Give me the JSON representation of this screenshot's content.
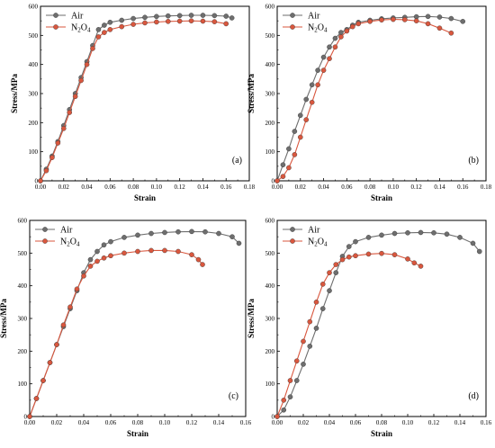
{
  "chart_data": [
    {
      "panel": "(a)",
      "type": "line",
      "xlabel": "Strain",
      "ylabel": "Stress/MPa",
      "xlim": [
        0,
        0.18
      ],
      "ylim": [
        0,
        600
      ],
      "xticks": [
        "0.00",
        "0.02",
        "0.04",
        "0.06",
        "0.08",
        "0.10",
        "0.12",
        "0.14",
        "0.16",
        "0.18"
      ],
      "yticks": [
        "0",
        "100",
        "200",
        "300",
        "400",
        "500",
        "600"
      ],
      "legend": "top-left",
      "series": [
        {
          "name": "Air",
          "color": "#6e6e6e",
          "x": [
            0,
            0.005,
            0.01,
            0.015,
            0.02,
            0.025,
            0.03,
            0.035,
            0.04,
            0.045,
            0.05,
            0.055,
            0.06,
            0.07,
            0.08,
            0.09,
            0.1,
            0.11,
            0.12,
            0.13,
            0.14,
            0.15,
            0.16,
            0.165
          ],
          "y": [
            0,
            40,
            85,
            135,
            190,
            245,
            300,
            355,
            410,
            465,
            520,
            535,
            545,
            552,
            558,
            562,
            565,
            567,
            568,
            569,
            569,
            568,
            566,
            560
          ]
        },
        {
          "name": "N2O4",
          "color": "#d9573e",
          "x": [
            0,
            0.005,
            0.01,
            0.015,
            0.02,
            0.025,
            0.03,
            0.035,
            0.04,
            0.045,
            0.05,
            0.055,
            0.06,
            0.07,
            0.08,
            0.09,
            0.1,
            0.11,
            0.12,
            0.13,
            0.14,
            0.15,
            0.16
          ],
          "y": [
            0,
            35,
            80,
            130,
            180,
            235,
            290,
            345,
            400,
            455,
            495,
            510,
            520,
            530,
            538,
            543,
            546,
            548,
            549,
            550,
            549,
            547,
            540
          ]
        }
      ]
    },
    {
      "panel": "(b)",
      "type": "line",
      "xlabel": "Strain",
      "ylabel": "Stress/MPa",
      "xlim": [
        0,
        0.18
      ],
      "ylim": [
        0,
        600
      ],
      "xticks": [
        "0.00",
        "0.02",
        "0.04",
        "0.06",
        "0.08",
        "0.10",
        "0.12",
        "0.14",
        "0.16",
        "0.18"
      ],
      "yticks": [
        "0",
        "100",
        "200",
        "300",
        "400",
        "500",
        "600"
      ],
      "legend": "top-left",
      "series": [
        {
          "name": "Air",
          "color": "#6e6e6e",
          "x": [
            0,
            0.005,
            0.01,
            0.015,
            0.02,
            0.025,
            0.03,
            0.035,
            0.04,
            0.045,
            0.05,
            0.055,
            0.06,
            0.065,
            0.07,
            0.08,
            0.09,
            0.1,
            0.11,
            0.12,
            0.13,
            0.14,
            0.15,
            0.16
          ],
          "y": [
            0,
            55,
            110,
            170,
            225,
            280,
            330,
            380,
            425,
            460,
            490,
            510,
            520,
            535,
            545,
            552,
            557,
            560,
            562,
            564,
            565,
            563,
            558,
            548
          ]
        },
        {
          "name": "N2O4",
          "color": "#d9573e",
          "x": [
            0,
            0.005,
            0.01,
            0.015,
            0.02,
            0.025,
            0.03,
            0.035,
            0.04,
            0.045,
            0.05,
            0.055,
            0.06,
            0.065,
            0.07,
            0.08,
            0.09,
            0.1,
            0.11,
            0.12,
            0.13,
            0.14,
            0.15
          ],
          "y": [
            0,
            15,
            45,
            90,
            150,
            210,
            270,
            330,
            380,
            420,
            460,
            495,
            515,
            530,
            540,
            548,
            553,
            555,
            554,
            550,
            540,
            525,
            508
          ]
        }
      ]
    },
    {
      "panel": "(c)",
      "type": "line",
      "xlabel": "Strain",
      "ylabel": "Stress/MPa",
      "xlim": [
        0,
        0.16
      ],
      "ylim": [
        0,
        600
      ],
      "xticks": [
        "0.00",
        "0.02",
        "0.04",
        "0.06",
        "0.08",
        "0.10",
        "0.12",
        "0.14",
        "0.16"
      ],
      "yticks": [
        "0",
        "100",
        "200",
        "300",
        "400",
        "500",
        "600"
      ],
      "legend": "top-left",
      "series": [
        {
          "name": "Air",
          "color": "#6e6e6e",
          "x": [
            0,
            0.005,
            0.01,
            0.015,
            0.02,
            0.025,
            0.03,
            0.035,
            0.04,
            0.045,
            0.05,
            0.055,
            0.06,
            0.07,
            0.08,
            0.09,
            0.1,
            0.11,
            0.12,
            0.13,
            0.14,
            0.15,
            0.155
          ],
          "y": [
            0,
            55,
            110,
            165,
            220,
            275,
            330,
            385,
            440,
            480,
            505,
            525,
            535,
            548,
            555,
            560,
            563,
            565,
            566,
            565,
            560,
            550,
            530
          ]
        },
        {
          "name": "N2O4",
          "color": "#d9573e",
          "x": [
            0,
            0.005,
            0.01,
            0.015,
            0.02,
            0.025,
            0.03,
            0.035,
            0.04,
            0.045,
            0.05,
            0.055,
            0.06,
            0.07,
            0.08,
            0.09,
            0.1,
            0.11,
            0.12,
            0.125,
            0.128
          ],
          "y": [
            0,
            55,
            110,
            165,
            220,
            280,
            335,
            390,
            430,
            460,
            475,
            485,
            492,
            500,
            505,
            508,
            508,
            505,
            495,
            480,
            465
          ]
        }
      ]
    },
    {
      "panel": "(d)",
      "type": "line",
      "xlabel": "Strain",
      "ylabel": "Stress/MPa",
      "xlim": [
        0,
        0.16
      ],
      "ylim": [
        0,
        600
      ],
      "xticks": [
        "0.00",
        "0.02",
        "0.04",
        "0.06",
        "0.08",
        "0.10",
        "0.12",
        "0.14",
        "0.16"
      ],
      "yticks": [
        "0",
        "100",
        "200",
        "300",
        "400",
        "500",
        "600"
      ],
      "legend": "top-left",
      "series": [
        {
          "name": "Air",
          "color": "#6e6e6e",
          "x": [
            0,
            0.005,
            0.01,
            0.015,
            0.02,
            0.025,
            0.03,
            0.035,
            0.04,
            0.045,
            0.05,
            0.055,
            0.06,
            0.07,
            0.08,
            0.09,
            0.1,
            0.11,
            0.12,
            0.13,
            0.14,
            0.15,
            0.155
          ],
          "y": [
            0,
            20,
            60,
            110,
            160,
            215,
            270,
            330,
            385,
            440,
            490,
            520,
            535,
            548,
            555,
            560,
            562,
            563,
            562,
            558,
            548,
            530,
            505
          ]
        },
        {
          "name": "N2O4",
          "color": "#d9573e",
          "x": [
            0,
            0.005,
            0.01,
            0.015,
            0.02,
            0.025,
            0.03,
            0.035,
            0.04,
            0.045,
            0.05,
            0.055,
            0.06,
            0.07,
            0.08,
            0.09,
            0.1,
            0.105,
            0.11
          ],
          "y": [
            0,
            50,
            110,
            170,
            230,
            290,
            350,
            405,
            440,
            465,
            480,
            488,
            492,
            497,
            499,
            495,
            482,
            470,
            460
          ]
        }
      ]
    }
  ]
}
